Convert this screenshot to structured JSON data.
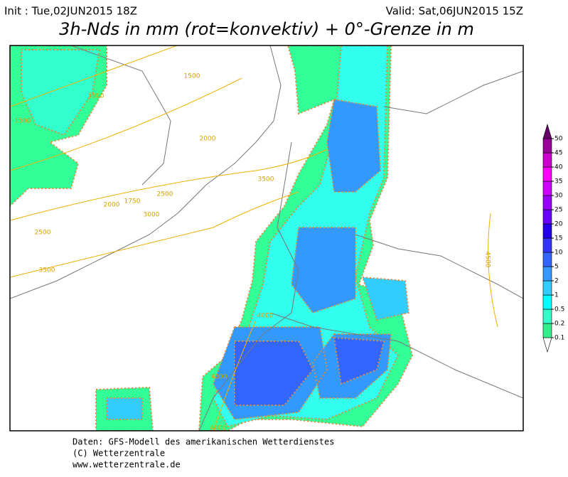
{
  "header": {
    "init": "Init : Tue,02JUN2015 18Z",
    "valid": "Valid: Sat,06JUN2015 15Z",
    "title": "3h-Nds in mm (rot=konvektiv) + 0°-Grenze in m"
  },
  "legend": {
    "levels": [
      0.1,
      0.2,
      0.5,
      1,
      2,
      5,
      10,
      15,
      20,
      25,
      30,
      35,
      40,
      45,
      50
    ],
    "colors": [
      "#ffffff",
      "#33ee88",
      "#33ffcc",
      "#00ffff",
      "#33ccff",
      "#3399ff",
      "#3366ff",
      "#3333ff",
      "#2200ee",
      "#6600ff",
      "#9900ff",
      "#cc00ff",
      "#ff00ff",
      "#cc00cc",
      "#990099",
      "#660066"
    ]
  },
  "map": {
    "contour_labels": [
      "1500",
      "1500",
      "1500",
      "2000",
      "3500",
      "2500",
      "1750",
      "2000",
      "3000",
      "2500",
      "3500",
      "4000",
      "4000",
      "4000",
      "4500"
    ]
  },
  "footer": {
    "lines": [
      "Daten: GFS-Modell des amerikanischen Wetterdienstes",
      "(C) Wetterzentrale",
      "www.wetterzentrale.de"
    ]
  }
}
